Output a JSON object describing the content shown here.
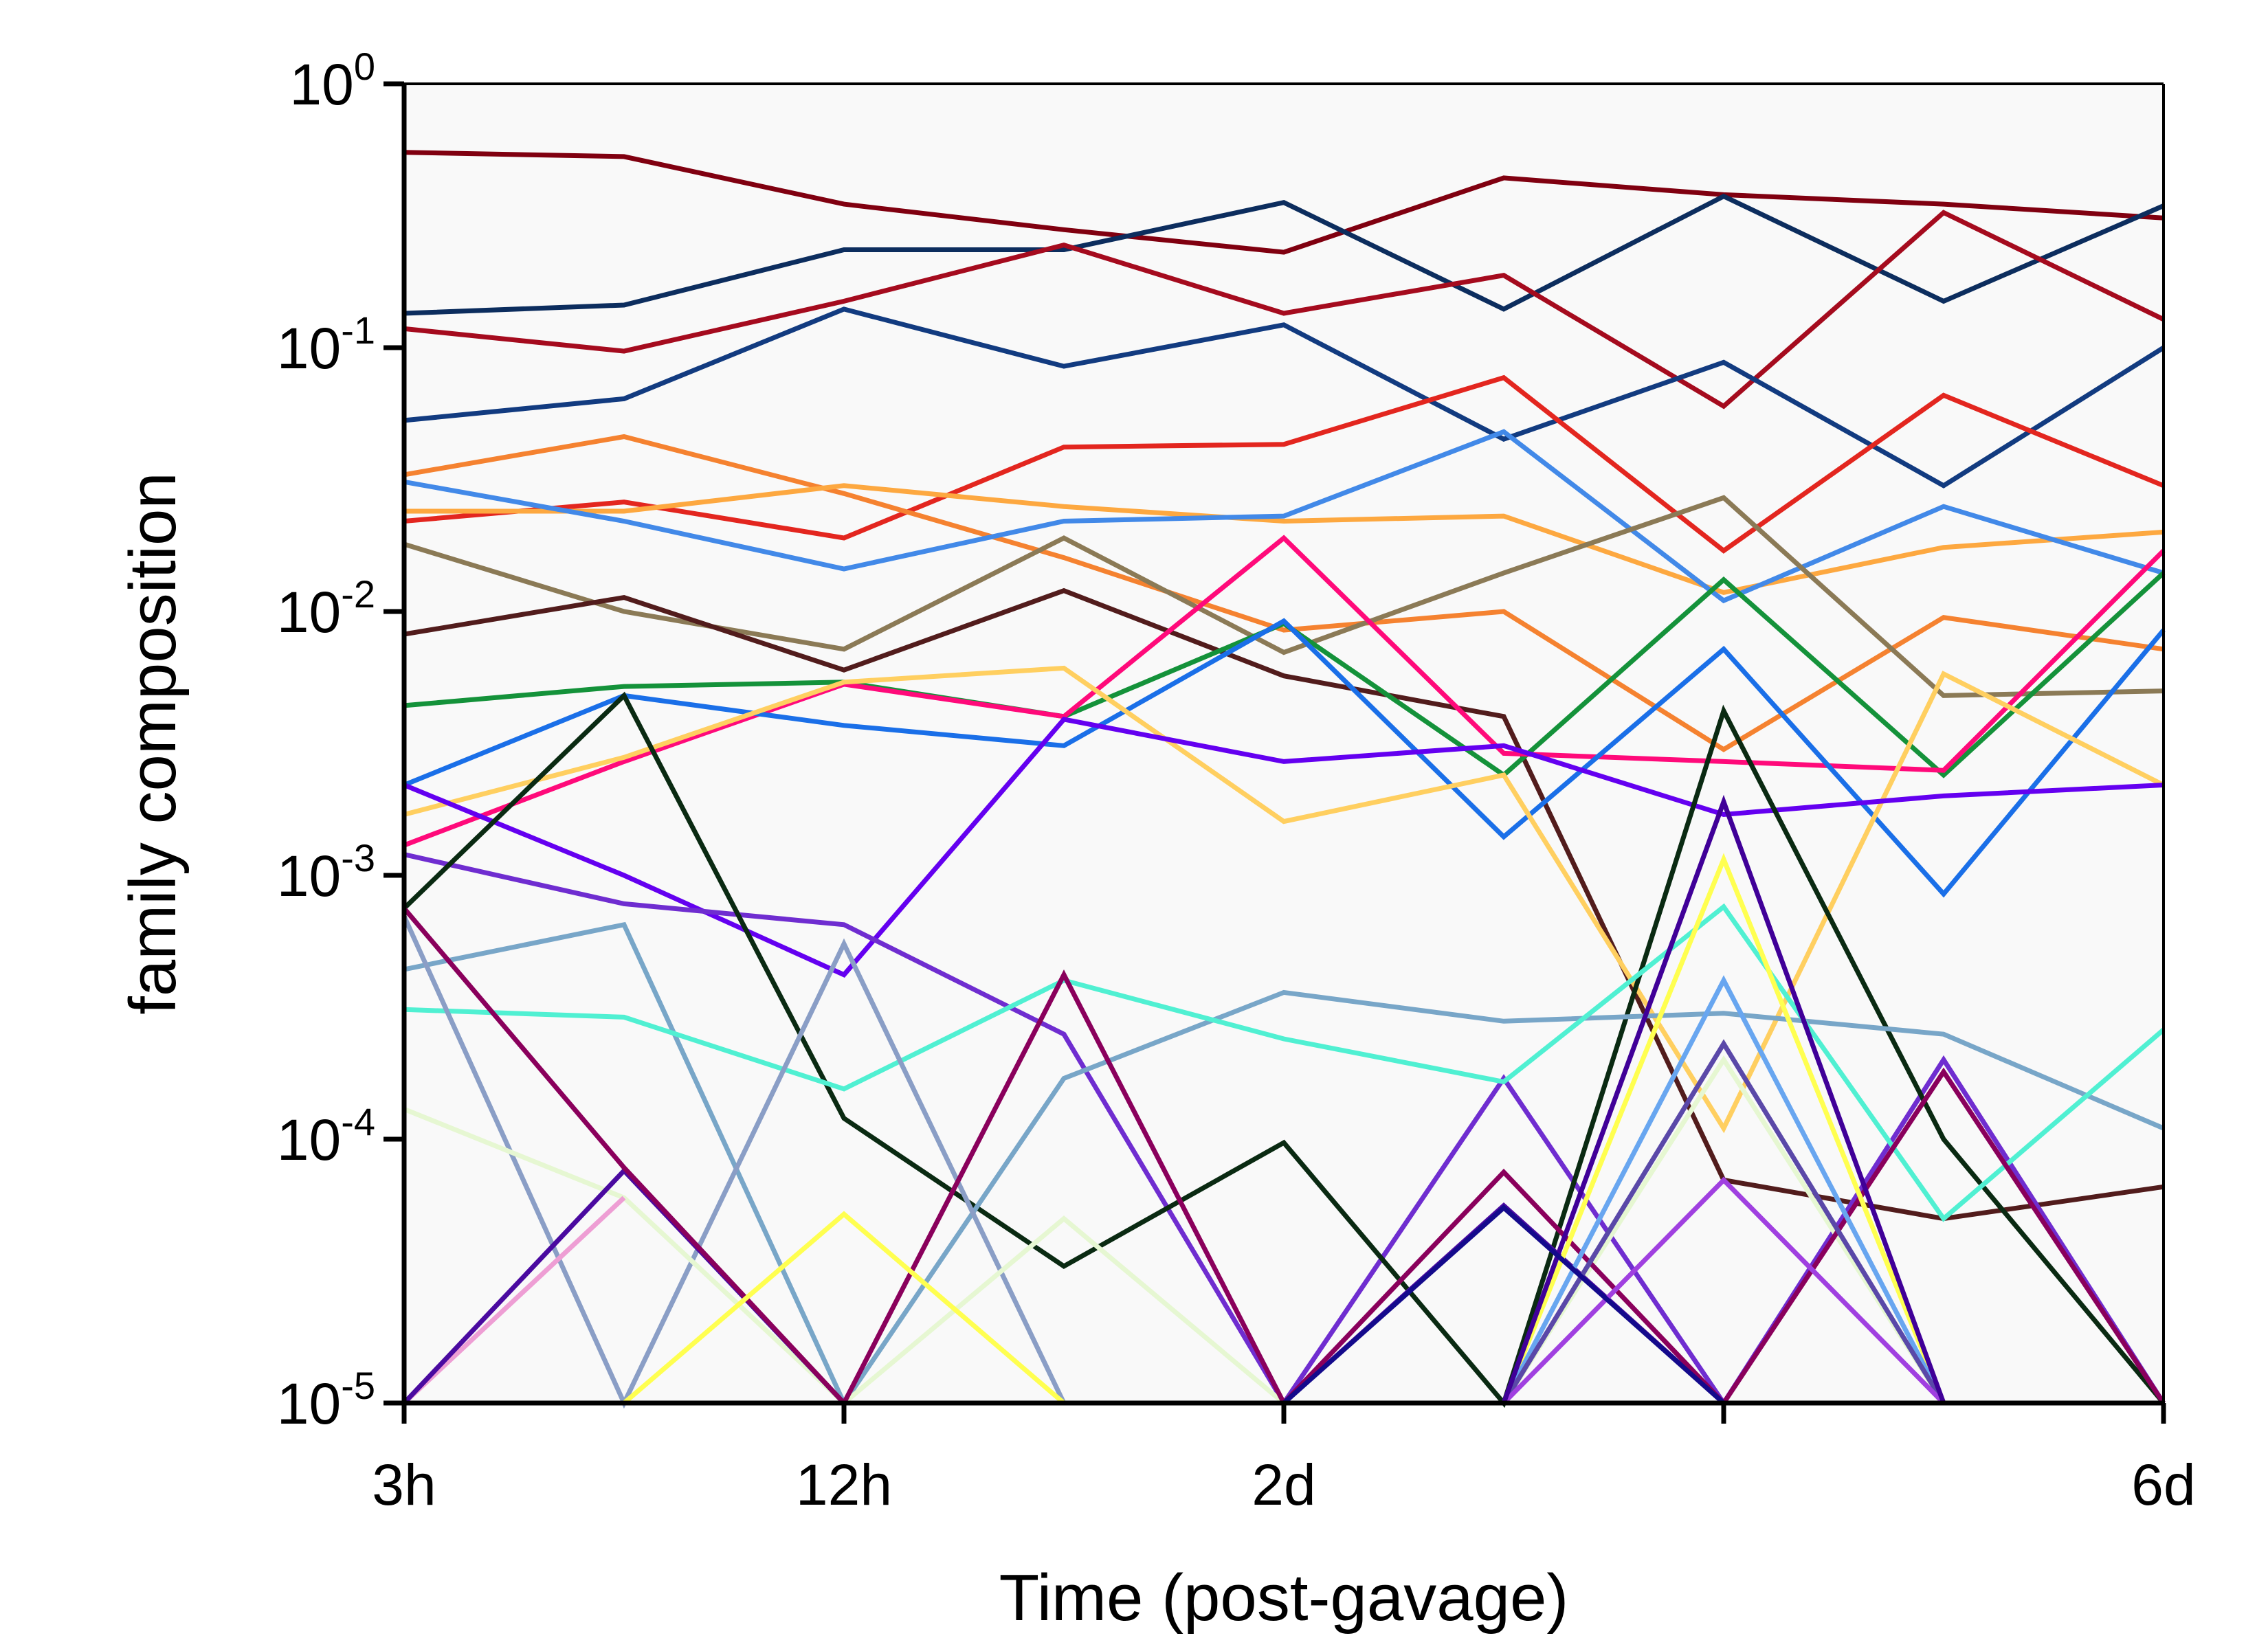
{
  "chart_data": {
    "type": "line",
    "xlabel": "Time (post-gavage)",
    "ylabel": "family composition",
    "yscale": "log",
    "ylim": [
      1e-05,
      1
    ],
    "x_points": 9,
    "x_tick_positions": [
      0,
      2,
      4,
      6,
      8
    ],
    "x_tick_labels": [
      "3h",
      "12h",
      "2d",
      "6d"
    ],
    "x_tick_label_positions": [
      0,
      2,
      4,
      8
    ],
    "y_ticks": [
      {
        "base": "10",
        "exp": "0"
      },
      {
        "base": "10",
        "exp": "-1"
      },
      {
        "base": "10",
        "exp": "-2"
      },
      {
        "base": "10",
        "exp": "-3"
      },
      {
        "base": "10",
        "exp": "-4"
      },
      {
        "base": "10",
        "exp": "-5"
      }
    ],
    "grid": false,
    "legend": "none",
    "background": "#f9f9f9",
    "series": [
      {
        "color": "#800010",
        "values": [
          0.55,
          0.53,
          0.35,
          0.28,
          0.23,
          0.44,
          0.38,
          0.35,
          0.31
        ]
      },
      {
        "color": "#0c2d5e",
        "values": [
          0.135,
          0.145,
          0.235,
          0.235,
          0.355,
          0.14,
          0.375,
          0.15,
          0.345
        ]
      },
      {
        "color": "#a50b1e",
        "values": [
          0.118,
          0.097,
          0.15,
          0.245,
          0.135,
          0.188,
          0.06,
          0.325,
          0.128
        ]
      },
      {
        "color": "#123b80",
        "values": [
          0.053,
          0.064,
          0.14,
          0.085,
          0.122,
          0.045,
          0.088,
          0.03,
          0.1
        ]
      },
      {
        "color": "#e3261f",
        "values": [
          0.022,
          0.026,
          0.019,
          0.042,
          0.043,
          0.077,
          0.017,
          0.066,
          0.03
        ]
      },
      {
        "color": "#f58230",
        "values": [
          0.033,
          0.046,
          0.028,
          0.016,
          0.0085,
          0.01,
          0.003,
          0.0095,
          0.0072
        ]
      },
      {
        "color": "#fda840",
        "values": [
          0.024,
          0.024,
          0.03,
          0.025,
          0.022,
          0.023,
          0.0118,
          0.0175,
          0.02
        ]
      },
      {
        "color": "#4289e8",
        "values": [
          0.031,
          0.022,
          0.0145,
          0.022,
          0.023,
          0.048,
          0.011,
          0.025,
          0.014
        ]
      },
      {
        "color": "#8b7a56",
        "values": [
          0.018,
          0.01,
          0.0072,
          0.019,
          0.007,
          0.014,
          0.027,
          0.0048,
          0.005
        ]
      },
      {
        "color": "#521c1c",
        "values": [
          0.0082,
          0.0113,
          0.006,
          0.012,
          0.0057,
          0.004,
          7e-05,
          5e-05,
          6.6e-05
        ]
      },
      {
        "color": "#14923a",
        "values": [
          0.0044,
          0.0052,
          0.0054,
          0.004,
          0.009,
          0.0024,
          0.0132,
          0.0024,
          0.014
        ]
      },
      {
        "color": "#ff0a7a",
        "values": [
          0.0013,
          0.0027,
          0.0053,
          0.004,
          0.019,
          0.0029,
          0.0027,
          0.0025,
          0.017
        ]
      },
      {
        "color": "#1a6fe8",
        "values": [
          0.0022,
          0.0048,
          0.0037,
          0.0031,
          0.0092,
          0.0014,
          0.0072,
          0.00085,
          0.0085
        ]
      },
      {
        "color": "#ffcf60",
        "values": [
          0.0017,
          0.0028,
          0.0054,
          0.0061,
          0.0016,
          0.0024,
          0.00011,
          0.0058,
          0.0022
        ]
      },
      {
        "color": "#6400f0",
        "values": [
          0.0022,
          0.001,
          0.00042,
          0.0039,
          0.0027,
          0.0031,
          0.0017,
          0.002,
          0.0022
        ]
      },
      {
        "color": "#6f2dd0",
        "values": [
          0.0012,
          0.00078,
          0.00065,
          0.00025,
          1e-05,
          0.00017,
          1e-05,
          0.0002,
          1e-05
        ]
      },
      {
        "color": "#0a2a12",
        "values": [
          0.00075,
          0.0048,
          0.00012,
          3.3e-05,
          9.7e-05,
          1e-05,
          0.0042,
          0.0001,
          1e-05
        ]
      },
      {
        "color": "#78a6c8",
        "values": [
          0.00044,
          0.00065,
          1e-05,
          0.00017,
          0.00036,
          0.00028,
          0.0003,
          0.00025,
          0.00011
        ]
      },
      {
        "color": "#50f0d2",
        "values": [
          0.00031,
          0.00029,
          0.000155,
          0.0004,
          0.00024,
          0.000165,
          0.00076,
          5e-05,
          0.00026
        ]
      },
      {
        "color": "#8a9ec6",
        "values": [
          0.0007,
          1e-05,
          0.00055,
          1e-05
        ]
      },
      {
        "color": "#e6f7d2",
        "values": [
          0.00013,
          6e-05,
          1e-05,
          5e-05,
          1e-05,
          1e-05,
          0.0002,
          1e-05
        ]
      },
      {
        "color": "#ee9ed4",
        "values": [
          1e-05,
          6e-05
        ]
      },
      {
        "color": "#4a0aa0",
        "values": [
          1e-05,
          7.6e-05,
          1e-05,
          1e-05,
          1e-05,
          5.6e-05,
          1e-05,
          1e-05,
          1e-05
        ]
      },
      {
        "color": "#8a005c",
        "values": [
          0.00075,
          7.8e-05,
          1e-05,
          0.00042,
          1e-05,
          7.5e-05,
          1e-05,
          0.00018,
          1e-05
        ]
      },
      {
        "color": "#ffff50",
        "values": [
          null,
          1e-05,
          5.2e-05,
          1e-05,
          null,
          1e-05,
          0.00115,
          1e-05
        ]
      },
      {
        "color": "#68a6f0",
        "values": [
          null,
          null,
          null,
          null,
          null,
          1e-05,
          0.0004,
          1e-05
        ]
      },
      {
        "color": "#5a48a8",
        "values": [
          null,
          null,
          null,
          null,
          null,
          1e-05,
          0.00023,
          1e-05
        ]
      },
      {
        "color": "#a040e0",
        "values": [
          null,
          null,
          null,
          null,
          null,
          1e-05,
          7e-05,
          1e-05
        ]
      },
      {
        "color": "#400098",
        "values": [
          null,
          null,
          null,
          null,
          null,
          1e-05,
          0.0019,
          1e-05
        ]
      },
      {
        "color": "#140a8c",
        "values": [
          null,
          null,
          null,
          1e-05,
          1e-05,
          5.5e-05,
          1e-05,
          1e-05,
          1e-05
        ]
      }
    ]
  }
}
